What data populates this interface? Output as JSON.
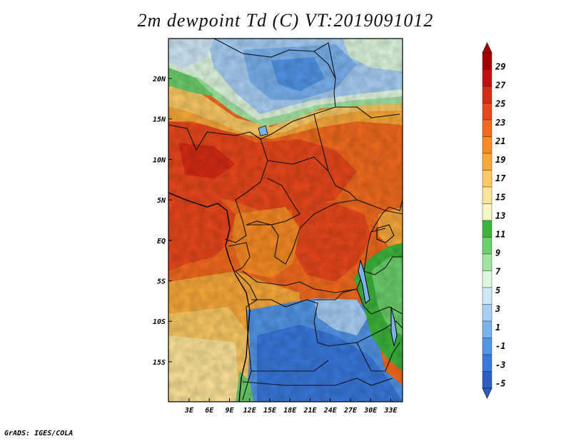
{
  "title": "2m dewpoint Td (C) VT:2019091012",
  "credit": "GrADS: IGES/COLA",
  "axes": {
    "lon_ticks": [
      "3E",
      "6E",
      "9E",
      "12E",
      "15E",
      "18E",
      "21E",
      "24E",
      "27E",
      "30E",
      "33E"
    ],
    "lat_ticks": [
      "20N",
      "15N",
      "10N",
      "5N",
      "EQ",
      "5S",
      "10S",
      "15S"
    ]
  },
  "colorbar": {
    "labels": [
      "29",
      "27",
      "25",
      "23",
      "21",
      "19",
      "17",
      "15",
      "13",
      "11",
      "9",
      "7",
      "5",
      "3",
      "1",
      "-1",
      "-3",
      "-5"
    ],
    "colors": [
      "#a50000",
      "#c21010",
      "#d62b14",
      "#e8471c",
      "#f26a1e",
      "#f78a24",
      "#f9a93a",
      "#fbc964",
      "#fde498",
      "#f5f5c5",
      "#3cb43c",
      "#6cd06c",
      "#a2e4a2",
      "#e0f6e0",
      "#cfe8f8",
      "#a8d0f5",
      "#7ab2ee",
      "#5294e6",
      "#3978dc",
      "#2a5ec6"
    ],
    "units": "C"
  }
}
